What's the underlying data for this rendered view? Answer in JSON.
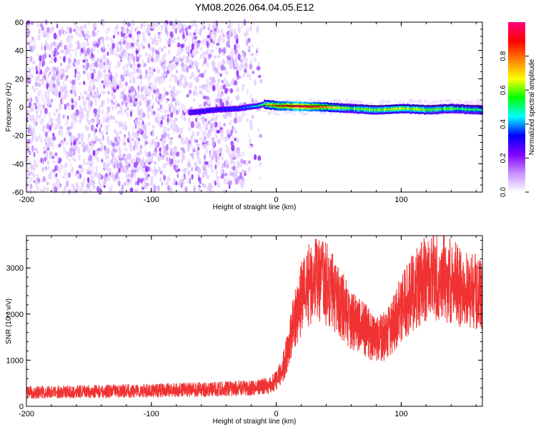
{
  "chart_data": [
    {
      "type": "heatmap",
      "title": "YM08.2026.064.04.05.E12",
      "xlabel": "Height of straight line (km)",
      "ylabel": "Frequency (Hz)",
      "xlim": [
        -200,
        165
      ],
      "ylim": [
        -60,
        60
      ],
      "x_ticks": [
        -200,
        -100,
        0,
        100
      ],
      "x_tick_labels": [
        "-200",
        "-100",
        "0",
        "100"
      ],
      "y_ticks": [
        -60,
        -40,
        -20,
        0,
        20,
        40,
        60
      ],
      "y_tick_labels": [
        "-60",
        "-40",
        "-20",
        "0",
        "20",
        "40",
        "60"
      ],
      "colorbar": {
        "label": "Normalized spectral amplitude",
        "range": [
          0,
          1
        ],
        "ticks": [
          0.0,
          0.2,
          0.4,
          0.6,
          0.8
        ],
        "tick_labels": [
          "0.0",
          "0.2",
          "0.4",
          "0.6",
          "0.8"
        ],
        "colors": [
          "#ffffff",
          "#e0c8ff",
          "#7a00ff",
          "#0000ff",
          "#00ffff",
          "#00ff00",
          "#ffff00",
          "#ff7f00",
          "#ff0000",
          "#ff00aa"
        ]
      },
      "ridge": {
        "x": [
          -70,
          -50,
          -30,
          -15,
          -10,
          0,
          20,
          40,
          60,
          80,
          100,
          120,
          140,
          165
        ],
        "frequency": [
          -4,
          -2,
          -1,
          1,
          2,
          1,
          0.5,
          0,
          -1,
          -2,
          -1,
          -2,
          -1,
          -2
        ],
        "amplitude": [
          0.25,
          0.3,
          0.35,
          0.5,
          0.6,
          0.8,
          0.95,
          0.75,
          0.55,
          0.6,
          0.65,
          0.6,
          0.55,
          0.5
        ]
      },
      "noise_region": {
        "x": [
          -200,
          -10
        ],
        "amplitude": [
          0.0,
          0.2
        ]
      }
    },
    {
      "type": "line",
      "title": "",
      "xlabel": "Height of straight line (km)",
      "ylabel": "SNR (10 * v/v)",
      "xlim": [
        -200,
        165
      ],
      "ylim": [
        0,
        3700
      ],
      "x_ticks": [
        -200,
        -100,
        0,
        100
      ],
      "x_tick_labels": [
        "-200",
        "-100",
        "0",
        "100"
      ],
      "y_ticks": [
        0,
        1000,
        2000,
        3000
      ],
      "y_tick_labels": [
        "0",
        "1000",
        "2000",
        "3000"
      ],
      "color": "#f03232",
      "series": [
        {
          "name": "",
          "x": [
            -200,
            -150,
            -100,
            -50,
            -20,
            -5,
            0,
            5,
            10,
            15,
            20,
            25,
            30,
            40,
            50,
            60,
            70,
            80,
            90,
            100,
            110,
            120,
            130,
            140,
            150,
            165
          ],
          "values": [
            300,
            320,
            340,
            370,
            400,
            450,
            560,
            800,
            1300,
            1900,
            2350,
            2620,
            2750,
            2650,
            2300,
            1900,
            1700,
            1400,
            1600,
            2100,
            2500,
            2800,
            2850,
            2700,
            2550,
            2400
          ]
        }
      ]
    }
  ]
}
